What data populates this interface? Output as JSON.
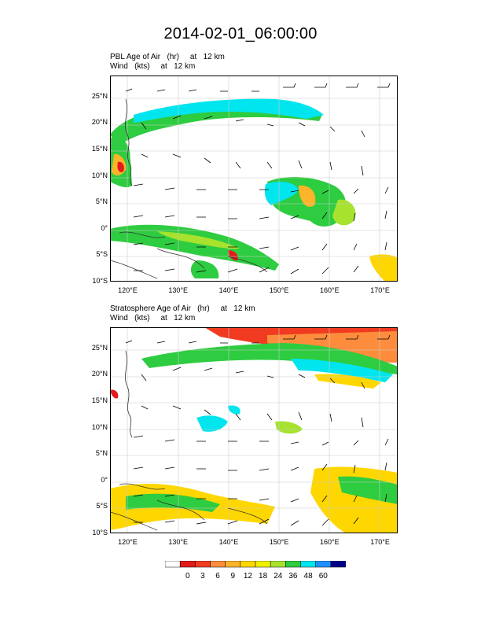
{
  "title": "2014-02-01_06:00:00",
  "panels": [
    {
      "id": "pbl",
      "field_label": "PBL Age of Air   (hr)     at   12 km",
      "wind_label": "Wind   (kts)     at   12 km"
    },
    {
      "id": "strat",
      "field_label": "Stratosphere Age of Air   (hr)     at   12 km",
      "wind_label": "Wind   (kts)     at   12 km"
    }
  ],
  "map": {
    "lon_range": [
      116.5,
      173.5
    ],
    "lat_range": [
      -10,
      29
    ],
    "lat_ticks": [
      "25°N",
      "20°N",
      "15°N",
      "10°N",
      "5°N",
      "0°",
      "5°S",
      "10°S"
    ],
    "lat_values": [
      25,
      20,
      15,
      10,
      5,
      0,
      -5,
      -10
    ],
    "lon_ticks": [
      "120°E",
      "130°E",
      "140°E",
      "150°E",
      "160°E",
      "170°E"
    ],
    "lon_values": [
      120,
      130,
      140,
      150,
      160,
      170
    ],
    "grid": true
  },
  "colorbar": {
    "labels": [
      "0",
      "3",
      "6",
      "9",
      "12",
      "18",
      "24",
      "36",
      "48",
      "60"
    ],
    "colors": [
      "#ffffff",
      "#e31a1c",
      "#f03b20",
      "#fd8d3c",
      "#fdb42a",
      "#ffd700",
      "#f0f000",
      "#a6e22e",
      "#2ecc40",
      "#00e5ee",
      "#1e90ff",
      "#00008b"
    ]
  }
}
